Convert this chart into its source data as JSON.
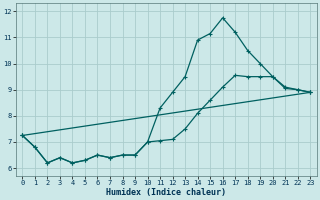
{
  "xlabel": "Humidex (Indice chaleur)",
  "background_color": "#cce8e8",
  "grid_color": "#aacccc",
  "line_color": "#006060",
  "xlim": [
    -0.5,
    23.5
  ],
  "ylim": [
    5.7,
    12.3
  ],
  "xticks": [
    0,
    1,
    2,
    3,
    4,
    5,
    6,
    7,
    8,
    9,
    10,
    11,
    12,
    13,
    14,
    15,
    16,
    17,
    18,
    19,
    20,
    21,
    22,
    23
  ],
  "yticks": [
    6,
    7,
    8,
    9,
    10,
    11,
    12
  ],
  "line1_x": [
    0,
    1,
    2,
    3,
    4,
    5,
    6,
    7,
    8,
    9,
    10,
    11,
    12,
    13,
    14,
    15,
    16,
    17,
    18,
    19,
    20,
    21,
    22,
    23
  ],
  "line1_y": [
    7.25,
    6.8,
    6.2,
    6.4,
    6.2,
    6.3,
    6.5,
    6.4,
    6.5,
    6.5,
    7.0,
    8.3,
    8.9,
    9.5,
    10.9,
    11.15,
    11.75,
    11.2,
    10.5,
    10.0,
    9.5,
    9.1,
    9.0,
    8.9
  ],
  "line2_x": [
    0,
    1,
    2,
    3,
    4,
    5,
    6,
    7,
    8,
    9,
    10,
    11,
    12,
    13,
    14,
    15,
    16,
    17,
    18,
    19,
    20,
    21,
    22,
    23
  ],
  "line2_y": [
    7.25,
    6.8,
    6.2,
    6.4,
    6.2,
    6.3,
    6.5,
    6.4,
    6.5,
    6.5,
    7.0,
    7.05,
    7.1,
    7.5,
    8.1,
    8.6,
    9.1,
    9.55,
    9.5,
    9.5,
    9.5,
    9.05,
    9.0,
    8.9
  ],
  "line3_x": [
    0,
    23
  ],
  "line3_y": [
    7.25,
    8.9
  ]
}
